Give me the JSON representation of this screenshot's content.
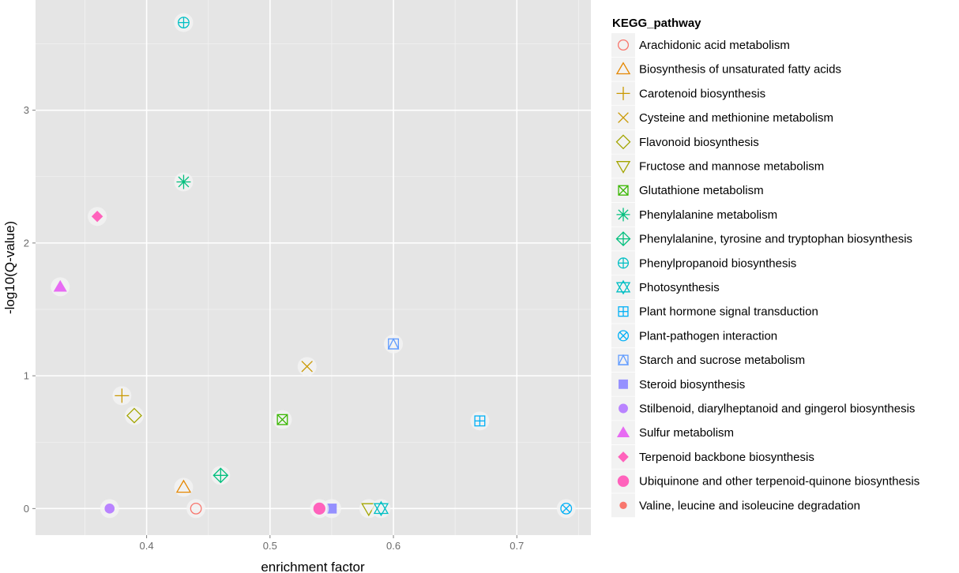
{
  "chart_data": {
    "type": "scatter",
    "xlabel": "enrichment factor",
    "ylabel": "-log10(Q-value)",
    "xlim": [
      0.31,
      0.76
    ],
    "ylim": [
      -0.2,
      3.83
    ],
    "xticks": [
      0.4,
      0.5,
      0.6,
      0.7
    ],
    "yticks": [
      0,
      1,
      2,
      3
    ],
    "xtick_labels": [
      "0.4",
      "0.5",
      "0.6",
      "0.7"
    ],
    "ytick_labels": [
      "0",
      "1",
      "2",
      "3"
    ],
    "grid": true,
    "legend": {
      "title": "KEGG_pathway",
      "placement": "right"
    },
    "series": [
      {
        "name": "Arachidonic acid metabolism",
        "color": "#F8766D",
        "shape": "circle-open",
        "x": 0.44,
        "y": 0.0
      },
      {
        "name": "Biosynthesis of unsaturated fatty acids",
        "color": "#E58700",
        "shape": "triangle-open",
        "x": 0.43,
        "y": 0.16
      },
      {
        "name": "Carotenoid biosynthesis",
        "color": "#C99800",
        "shape": "plus",
        "x": 0.38,
        "y": 0.85
      },
      {
        "name": "Cysteine and methionine metabolism",
        "color": "#C99800",
        "shape": "cross",
        "x": 0.53,
        "y": 1.07
      },
      {
        "name": "Flavonoid biosynthesis",
        "color": "#A3A500",
        "shape": "diamond-open",
        "x": 0.39,
        "y": 0.7
      },
      {
        "name": "Fructose and mannose metabolism",
        "color": "#A3A500",
        "shape": "triangle-down-open",
        "x": 0.58,
        "y": 0.0
      },
      {
        "name": "Glutathione metabolism",
        "color": "#39B600",
        "shape": "square-cross",
        "x": 0.51,
        "y": 0.67
      },
      {
        "name": "Phenylalanine metabolism",
        "color": "#00BF7D",
        "shape": "asterisk",
        "x": 0.43,
        "y": 2.46
      },
      {
        "name": "Phenylalanine, tyrosine and tryptophan biosynthesis",
        "color": "#00BF7D",
        "shape": "diamond-plus",
        "x": 0.46,
        "y": 0.25
      },
      {
        "name": "Phenylpropanoid biosynthesis",
        "color": "#00BFC4",
        "shape": "circle-plus",
        "x": 0.43,
        "y": 3.66
      },
      {
        "name": "Photosynthesis",
        "color": "#00BFC4",
        "shape": "star-of-david",
        "x": 0.59,
        "y": 0.0
      },
      {
        "name": "Plant hormone signal transduction",
        "color": "#00B0F6",
        "shape": "square-plus",
        "x": 0.67,
        "y": 0.66
      },
      {
        "name": "Plant-pathogen interaction",
        "color": "#00B0F6",
        "shape": "circle-cross",
        "x": 0.74,
        "y": 0.0
      },
      {
        "name": "Starch and sucrose metabolism",
        "color": "#619CFF",
        "shape": "square-triangle",
        "x": 0.6,
        "y": 1.24
      },
      {
        "name": "Steroid biosynthesis",
        "color": "#9590FF",
        "shape": "square-filled",
        "x": 0.55,
        "y": 0.0
      },
      {
        "name": "Stilbenoid, diarylheptanoid and gingerol biosynthesis",
        "color": "#B983FF",
        "shape": "circle-filled",
        "x": 0.37,
        "y": 0.0
      },
      {
        "name": "Sulfur metabolism",
        "color": "#E76BF3",
        "shape": "triangle-filled",
        "x": 0.33,
        "y": 1.67
      },
      {
        "name": "Terpenoid backbone biosynthesis",
        "color": "#FF62BC",
        "shape": "diamond-filled",
        "x": 0.36,
        "y": 2.2
      },
      {
        "name": "Ubiquinone and other terpenoid-quinone biosynthesis",
        "color": "#FF62BC",
        "shape": "circle-filled-large",
        "x": 0.54,
        "y": 0.0
      },
      {
        "name": "Valine, leucine and isoleucine degradation",
        "color": "#F8766D",
        "shape": "circle-filled-small"
      }
    ]
  }
}
